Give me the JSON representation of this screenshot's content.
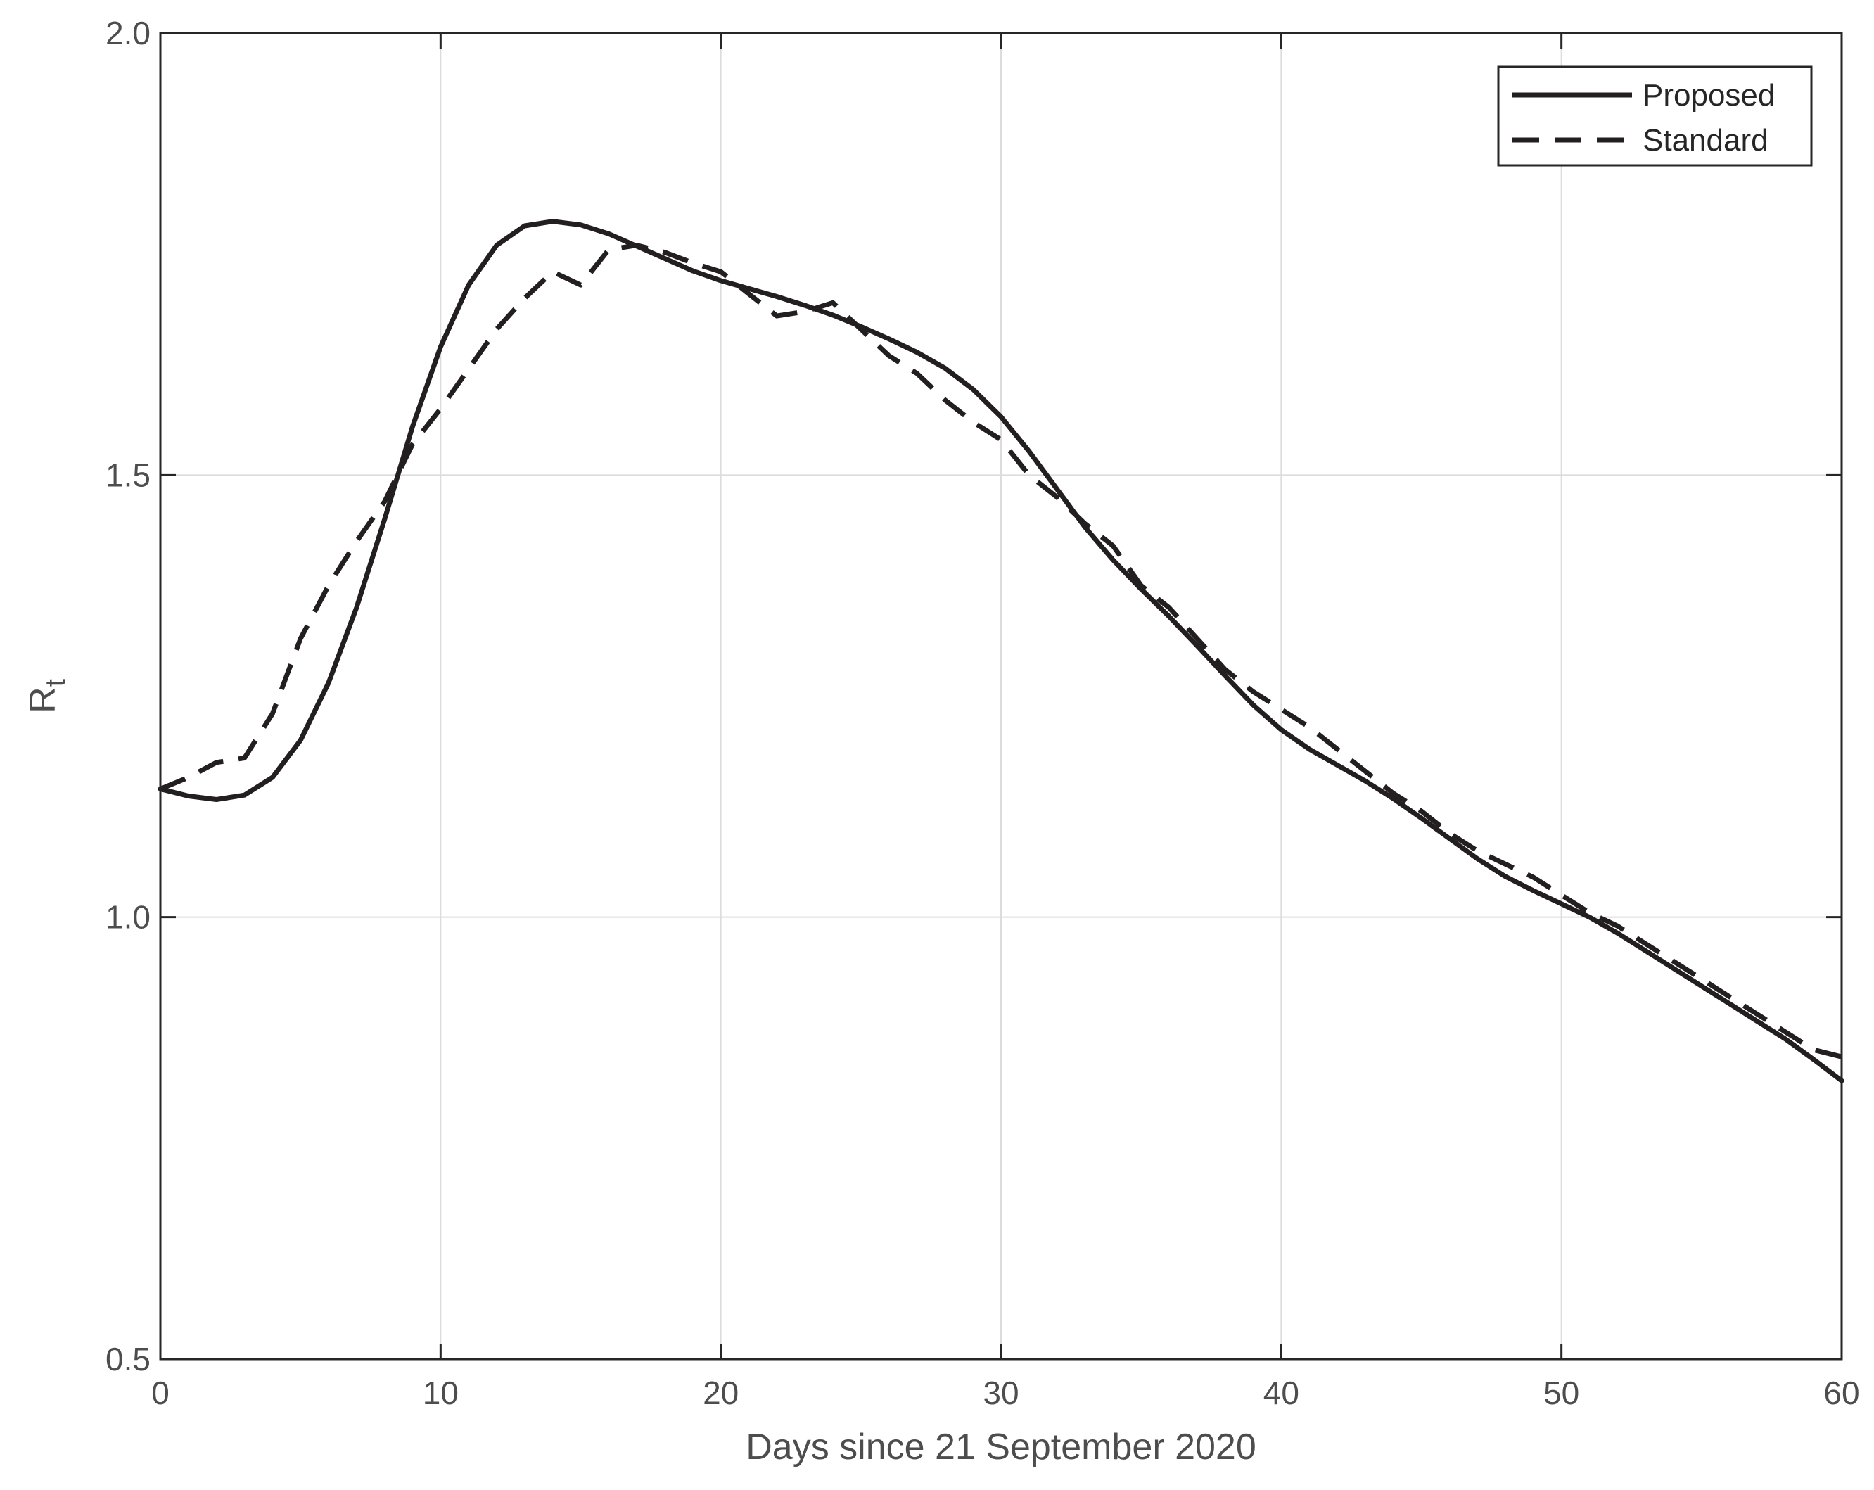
{
  "chart_data": {
    "type": "line",
    "xlabel": "Days since 21 September 2020",
    "ylabel": "R",
    "ylabel_subscript": "t",
    "xlim": [
      0,
      60
    ],
    "ylim": [
      0.5,
      2.0
    ],
    "xticks": [
      0,
      10,
      20,
      30,
      40,
      50,
      60
    ],
    "xtick_labels": [
      "0",
      "10",
      "20",
      "30",
      "40",
      "50",
      "60"
    ],
    "yticks": [
      0.5,
      1.0,
      1.5,
      2.0
    ],
    "ytick_labels": [
      "0.5",
      "1.0",
      "1.5",
      "2.0"
    ],
    "grid": true,
    "legend": "top-right",
    "series": [
      {
        "name": "Proposed",
        "style": "solid",
        "color": "#231f20",
        "x": [
          0,
          1,
          2,
          3,
          4,
          5,
          6,
          7,
          8,
          9,
          10,
          11,
          12,
          13,
          14,
          15,
          16,
          17,
          18,
          19,
          20,
          21,
          22,
          23,
          24,
          25,
          26,
          27,
          28,
          29,
          30,
          31,
          32,
          33,
          34,
          35,
          36,
          37,
          38,
          39,
          40,
          41,
          42,
          43,
          44,
          45,
          46,
          47,
          48,
          49,
          50,
          51,
          52,
          53,
          54,
          55,
          56,
          57,
          58,
          59,
          60
        ],
        "y": [
          1.145,
          1.137,
          1.133,
          1.138,
          1.158,
          1.2,
          1.265,
          1.35,
          1.45,
          1.555,
          1.645,
          1.715,
          1.76,
          1.782,
          1.787,
          1.783,
          1.773,
          1.759,
          1.745,
          1.731,
          1.72,
          1.711,
          1.702,
          1.692,
          1.681,
          1.668,
          1.654,
          1.639,
          1.621,
          1.597,
          1.566,
          1.527,
          1.484,
          1.441,
          1.404,
          1.371,
          1.34,
          1.307,
          1.273,
          1.24,
          1.212,
          1.19,
          1.172,
          1.154,
          1.134,
          1.112,
          1.089,
          1.066,
          1.046,
          1.03,
          1.015,
          1.0,
          0.982,
          0.962,
          0.942,
          0.922,
          0.902,
          0.882,
          0.862,
          0.839,
          0.815
        ]
      },
      {
        "name": "Standard",
        "style": "dashed",
        "color": "#231f20",
        "x": [
          0,
          1,
          2,
          3,
          4,
          5,
          6,
          7,
          8,
          9,
          10,
          11,
          12,
          13,
          14,
          15,
          16,
          17,
          18,
          19,
          20,
          21,
          22,
          23,
          24,
          25,
          26,
          27,
          28,
          29,
          30,
          31,
          32,
          33,
          34,
          35,
          36,
          37,
          38,
          39,
          40,
          41,
          42,
          43,
          44,
          45,
          46,
          47,
          48,
          49,
          50,
          51,
          52,
          53,
          54,
          55,
          56,
          57,
          58,
          59,
          60
        ],
        "y": [
          1.145,
          1.158,
          1.175,
          1.18,
          1.23,
          1.315,
          1.375,
          1.425,
          1.47,
          1.535,
          1.575,
          1.62,
          1.665,
          1.7,
          1.73,
          1.715,
          1.755,
          1.76,
          1.752,
          1.74,
          1.73,
          1.705,
          1.68,
          1.685,
          1.695,
          1.665,
          1.635,
          1.615,
          1.585,
          1.56,
          1.54,
          1.5,
          1.475,
          1.445,
          1.42,
          1.375,
          1.35,
          1.315,
          1.28,
          1.255,
          1.235,
          1.215,
          1.19,
          1.165,
          1.14,
          1.12,
          1.095,
          1.075,
          1.06,
          1.045,
          1.025,
          1.005,
          0.99,
          0.97,
          0.95,
          0.93,
          0.91,
          0.89,
          0.87,
          0.85,
          0.842
        ]
      }
    ]
  }
}
